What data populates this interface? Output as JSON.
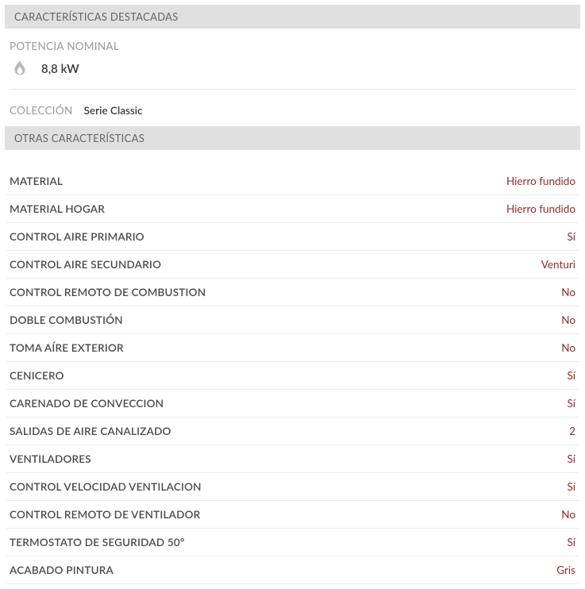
{
  "colors": {
    "header_bg": "#e0e0e0",
    "header_text": "#666666",
    "label_muted": "#9a9a9a",
    "text_strong": "#3a3a3a",
    "spec_label": "#4a4a4a",
    "spec_value": "#8f2a2a",
    "divider": "#ececec",
    "icon_fill": "#b9b9b9"
  },
  "sections": {
    "featured_header": "CARACTERÍSTICAS DESTACADAS",
    "other_header": "OTRAS CARACTERÍSTICAS"
  },
  "featured": {
    "label": "POTENCIA NOMINAL",
    "value": "8,8 kW"
  },
  "collection": {
    "label": "COLECCIÓN",
    "value": "Serie Classic"
  },
  "specs": [
    {
      "label": "MATERIAL",
      "value": "Hierro fundido"
    },
    {
      "label": "MATERIAL HOGAR",
      "value": "Hierro fundido"
    },
    {
      "label": "CONTROL AIRE PRIMARIO",
      "value": "Sí"
    },
    {
      "label": "CONTROL AIRE SECUNDARIO",
      "value": "Venturi"
    },
    {
      "label": "CONTROL REMOTO DE COMBUSTION",
      "value": "No"
    },
    {
      "label": "DOBLE COMBUSTIÓN",
      "value": "No"
    },
    {
      "label": "TOMA AÍRE EXTERIOR",
      "value": "No"
    },
    {
      "label": "CENICERO",
      "value": "Sí"
    },
    {
      "label": "CARENADO DE CONVECCION",
      "value": "Sí"
    },
    {
      "label": "SALIDAS DE AIRE CANALIZADO",
      "value": "2"
    },
    {
      "label": "VENTILADORES",
      "value": "Sí"
    },
    {
      "label": "CONTROL VELOCIDAD VENTILACION",
      "value": "Sí"
    },
    {
      "label": "CONTROL REMOTO DE VENTILADOR",
      "value": "No"
    },
    {
      "label": "TERMOSTATO DE SEGURIDAD 50º",
      "value": "Sí"
    },
    {
      "label": "ACABADO PINTURA",
      "value": "Gris"
    }
  ]
}
